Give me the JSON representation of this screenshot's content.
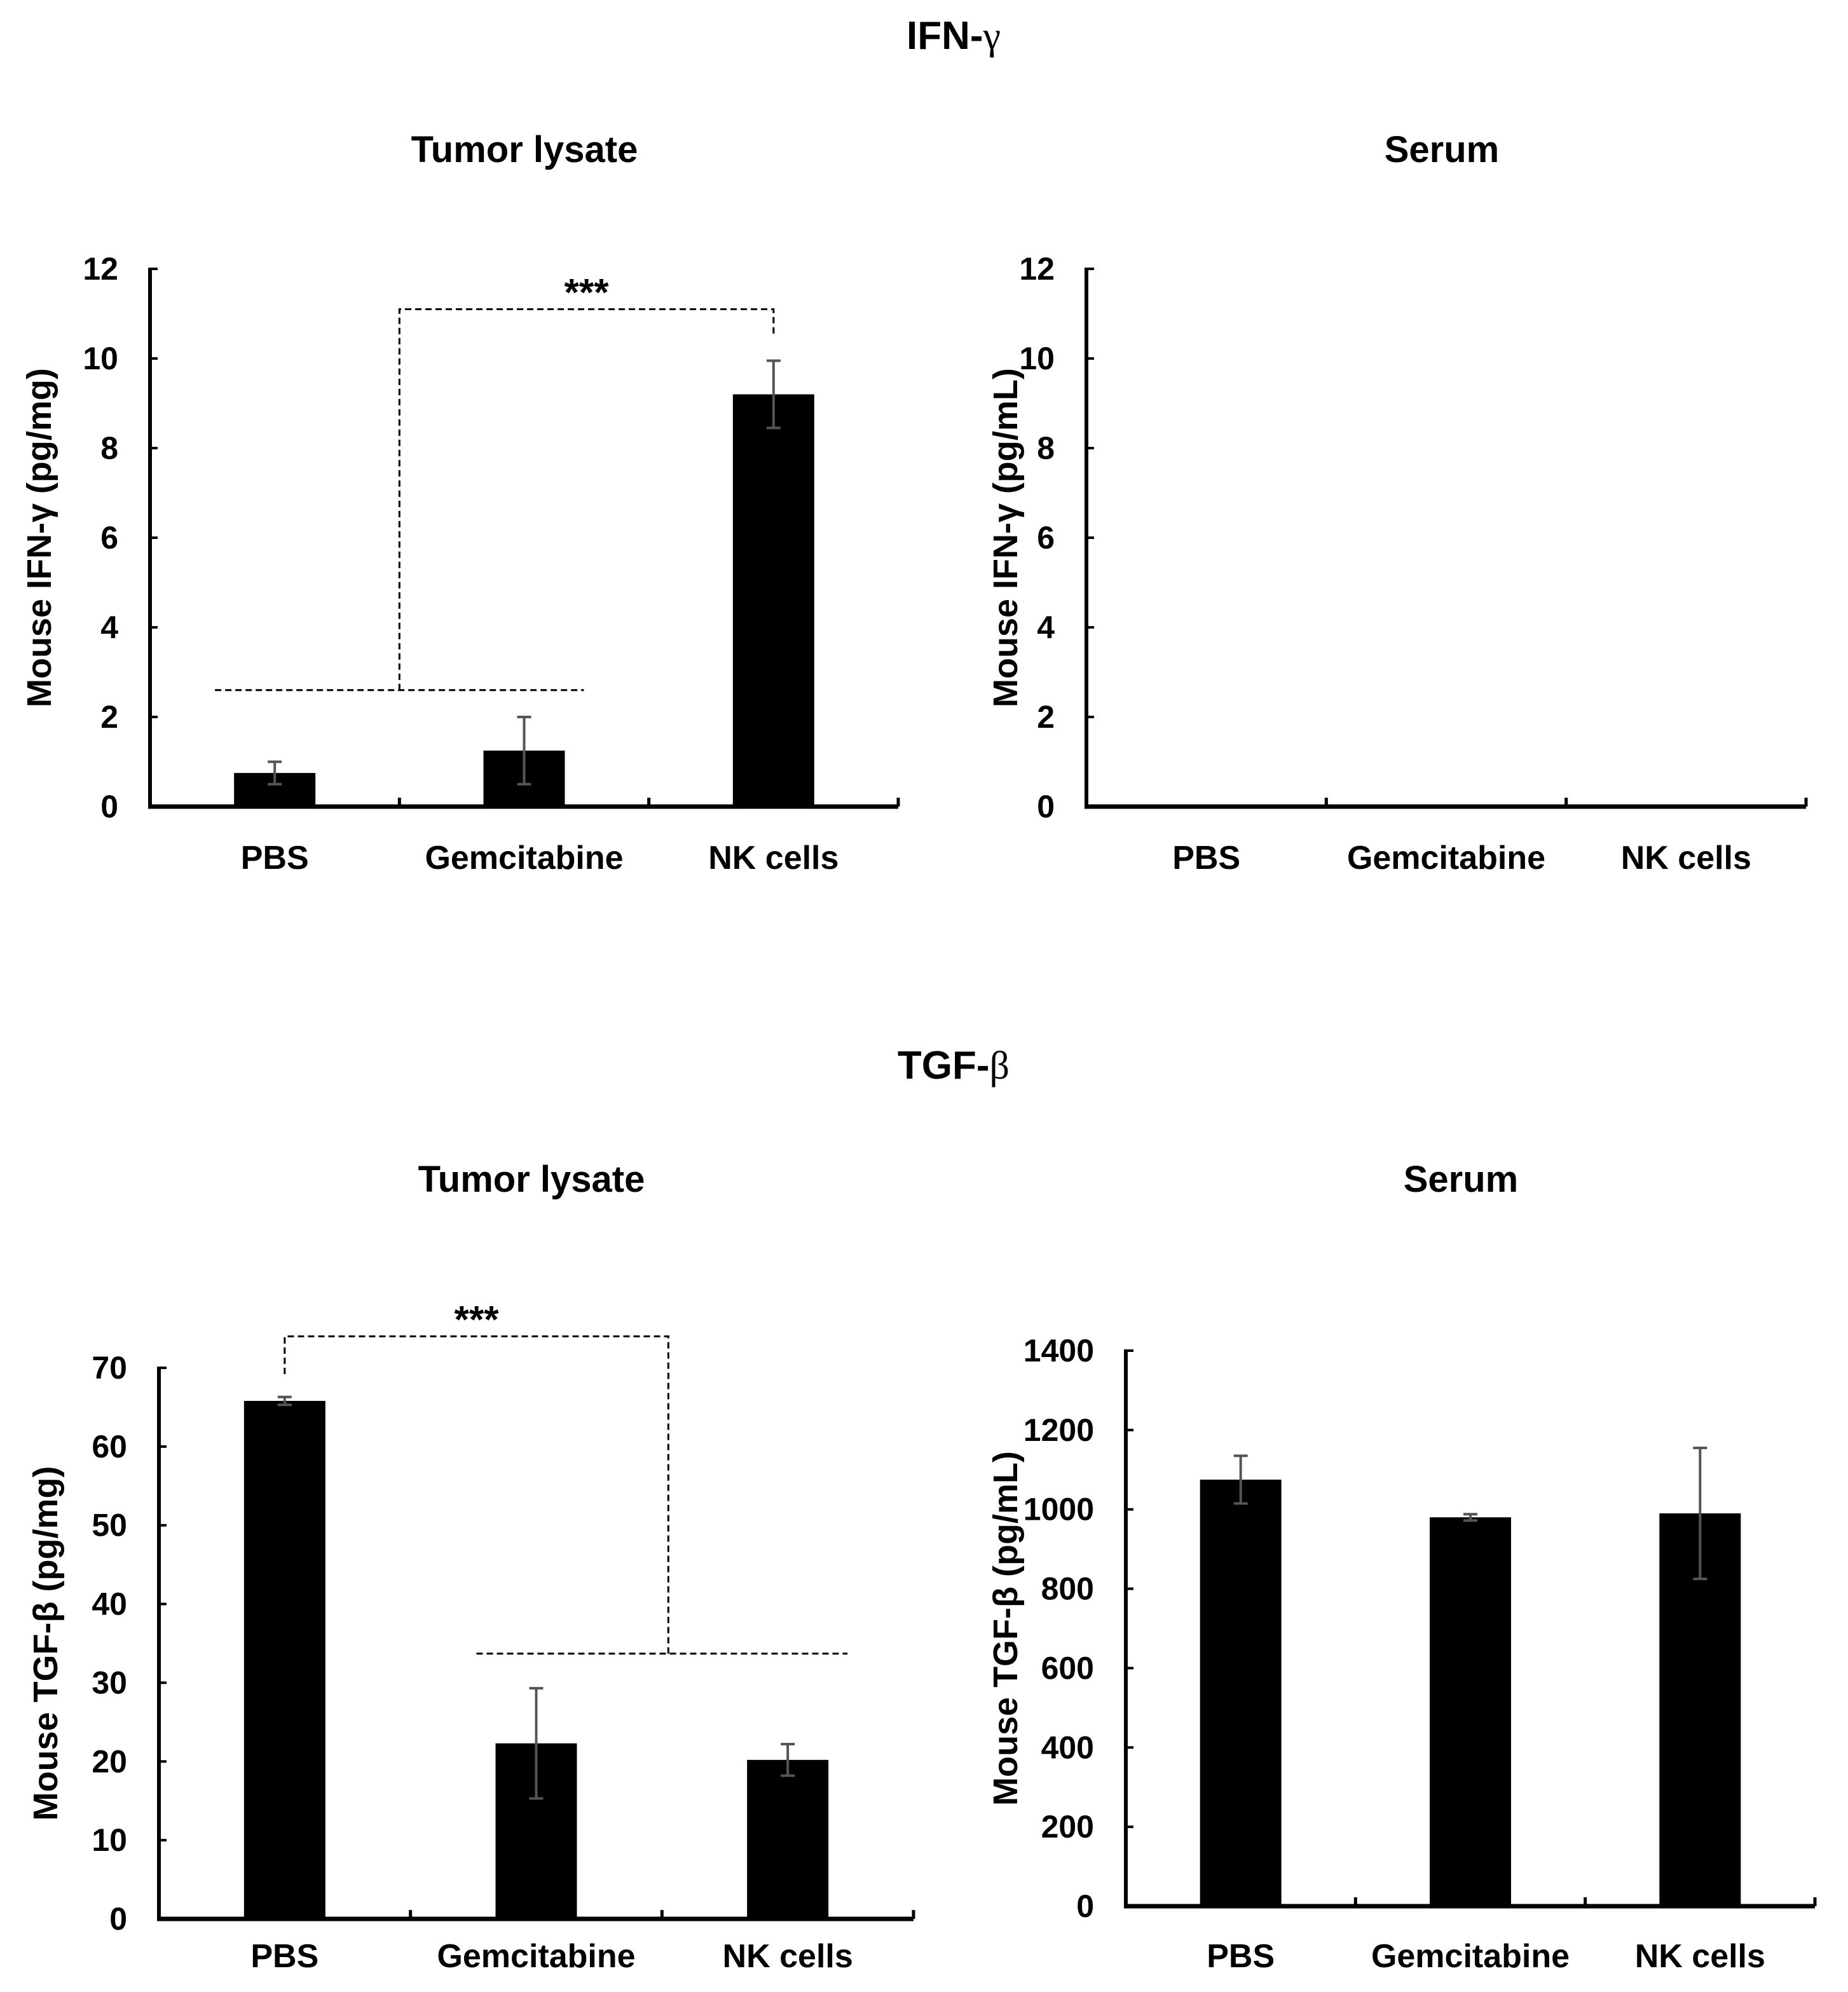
{
  "sections": [
    {
      "title": "IFN-",
      "greek": "γ"
    },
    {
      "title": "TGF-",
      "greek": "β"
    }
  ],
  "chart_data": [
    {
      "type": "bar",
      "section": 0,
      "title": "Tumor lysate",
      "ylabel": "Mouse IFN-γ (pg/mg)",
      "categories": [
        "PBS",
        "Gemcitabine",
        "NK cells"
      ],
      "values": [
        0.75,
        1.25,
        9.2
      ],
      "errors": [
        0.25,
        0.75,
        0.75
      ],
      "ylim": [
        0,
        12
      ],
      "yticks": [
        0,
        2,
        4,
        6,
        8,
        10,
        12
      ],
      "significance": {
        "label": "***",
        "from": [
          0,
          1
        ],
        "to": 2,
        "level": 11.1,
        "group_line": 2.6,
        "target_top": 10.5
      }
    },
    {
      "type": "bar",
      "section": 0,
      "title": "Serum",
      "ylabel": "Mouse IFN-γ (pg/mL)",
      "categories": [
        "PBS",
        "Gemcitabine",
        "NK cells"
      ],
      "values": [
        0,
        0,
        0
      ],
      "errors": [
        0,
        0,
        0
      ],
      "ylim": [
        0,
        12
      ],
      "yticks": [
        0,
        2,
        4,
        6,
        8,
        10,
        12
      ]
    },
    {
      "type": "bar",
      "section": 1,
      "title": "Tumor lysate",
      "ylabel": "Mouse TGF-β (pg/mg)",
      "categories": [
        "PBS",
        "Gemcitabine",
        "NK cells"
      ],
      "values": [
        65.8,
        22.3,
        20.2
      ],
      "errors": [
        0.5,
        7.0,
        2.0
      ],
      "ylim": [
        0,
        70
      ],
      "yticks": [
        0,
        10,
        20,
        30,
        40,
        50,
        60,
        70
      ],
      "significance": {
        "label": "***",
        "from": [
          1,
          2
        ],
        "to": 0,
        "level": 74.0,
        "group_line": 33.7,
        "target_top": 69.0
      }
    },
    {
      "type": "bar",
      "section": 1,
      "title": "Serum",
      "ylabel": "Mouse TGF-β (pg/mL)",
      "categories": [
        "PBS",
        "Gemcitabine",
        "NK cells"
      ],
      "values": [
        1075,
        980,
        990
      ],
      "errors": [
        60,
        8,
        165
      ],
      "ylim": [
        0,
        1400
      ],
      "yticks": [
        0,
        200,
        400,
        600,
        800,
        1000,
        1200,
        1400
      ]
    }
  ]
}
